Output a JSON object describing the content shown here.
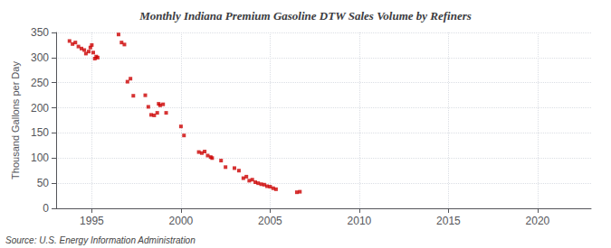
{
  "chart_data": {
    "type": "scatter",
    "title": "Monthly Indiana Premium Gasoline DTW Sales Volume by Refiners",
    "ylabel": "Thousand Gallons per Day",
    "annotations": [
      "Source: U.S. Energy Information Administration"
    ],
    "color": "#cc0000",
    "marker": "square",
    "grid": true,
    "xlim": [
      1993.0,
      2023.0
    ],
    "ylim": [
      0,
      350
    ],
    "xticks": [
      1995,
      2000,
      2005,
      2010,
      2015,
      2020
    ],
    "yticks": [
      0,
      50,
      100,
      150,
      200,
      250,
      300,
      350
    ],
    "x": [
      1993.75,
      1993.92,
      1994.08,
      1994.25,
      1994.42,
      1994.58,
      1994.67,
      1994.83,
      1994.92,
      1995.0,
      1995.08,
      1995.17,
      1995.25,
      1995.33,
      1996.5,
      1996.67,
      1996.83,
      1997.0,
      1997.17,
      1997.33,
      1998.0,
      1998.17,
      1998.33,
      1998.5,
      1998.67,
      1998.75,
      1998.83,
      1999.0,
      1999.17,
      2000.0,
      2000.17,
      2001.0,
      2001.17,
      2001.33,
      2001.5,
      2001.67,
      2001.75,
      2002.25,
      2002.5,
      2003.0,
      2003.25,
      2003.5,
      2003.67,
      2003.83,
      2004.0,
      2004.17,
      2004.33,
      2004.5,
      2004.67,
      2004.83,
      2005.0,
      2005.17,
      2005.33,
      2006.5,
      2006.67
    ],
    "values": [
      333,
      327,
      330,
      322,
      318,
      315,
      308,
      312,
      320,
      325,
      310,
      298,
      302,
      300,
      346,
      330,
      326,
      252,
      258,
      224,
      225,
      202,
      186,
      185,
      190,
      208,
      205,
      207,
      190,
      163,
      145,
      112,
      110,
      113,
      105,
      102,
      100,
      95,
      82,
      80,
      75,
      60,
      63,
      55,
      57,
      52,
      50,
      48,
      47,
      44,
      43,
      40,
      38,
      32,
      33
    ]
  }
}
